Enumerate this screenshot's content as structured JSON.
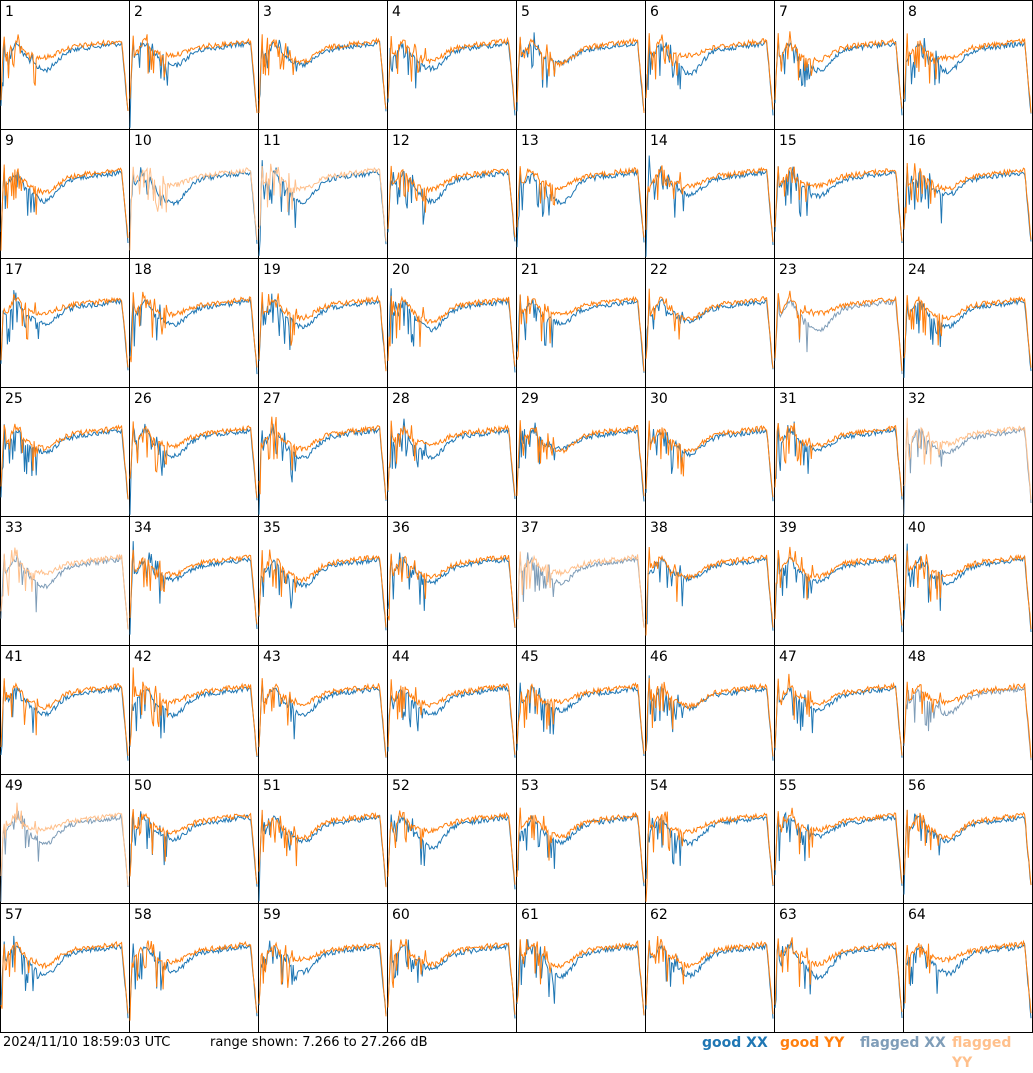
{
  "chart_data": {
    "type": "line",
    "layout": "8x8 grid of small-multiple spectra",
    "panel_labels": [
      "1",
      "2",
      "3",
      "4",
      "5",
      "6",
      "7",
      "8",
      "9",
      "10",
      "11",
      "12",
      "13",
      "14",
      "15",
      "16",
      "17",
      "18",
      "19",
      "20",
      "21",
      "22",
      "23",
      "24",
      "25",
      "26",
      "27",
      "28",
      "29",
      "30",
      "31",
      "32",
      "33",
      "34",
      "35",
      "36",
      "37",
      "38",
      "39",
      "40",
      "41",
      "42",
      "43",
      "44",
      "45",
      "46",
      "47",
      "48",
      "49",
      "50",
      "51",
      "52",
      "53",
      "54",
      "55",
      "56",
      "57",
      "58",
      "59",
      "60",
      "61",
      "62",
      "63",
      "64"
    ],
    "ylim_db": [
      7.266,
      27.266
    ],
    "grid": "panel borders only, no axes or tick labels",
    "legend_position": "bottom-right",
    "series": [
      {
        "name": "good XX",
        "color": "#1f77b4"
      },
      {
        "name": "good YY",
        "color": "#ff7f0e"
      },
      {
        "name": "flagged XX",
        "color": "#7f9db8"
      },
      {
        "name": "flagged YY",
        "color": "#ffc08c"
      }
    ],
    "panel_status": [
      [
        "good",
        "good"
      ],
      [
        "good",
        "good"
      ],
      [
        "good",
        "good"
      ],
      [
        "good",
        "good"
      ],
      [
        "good",
        "good"
      ],
      [
        "good",
        "good"
      ],
      [
        "good",
        "good"
      ],
      [
        "good",
        "good"
      ],
      [
        "good",
        "good"
      ],
      [
        "good",
        "flagged"
      ],
      [
        "good",
        "flagged"
      ],
      [
        "good",
        "good"
      ],
      [
        "good",
        "good"
      ],
      [
        "good",
        "good"
      ],
      [
        "good",
        "good"
      ],
      [
        "good",
        "good"
      ],
      [
        "good",
        "good"
      ],
      [
        "good",
        "good"
      ],
      [
        "good",
        "good"
      ],
      [
        "good",
        "good"
      ],
      [
        "good",
        "good"
      ],
      [
        "good",
        "good"
      ],
      [
        "flagged",
        "good"
      ],
      [
        "good",
        "good"
      ],
      [
        "good",
        "good"
      ],
      [
        "good",
        "good"
      ],
      [
        "good",
        "good"
      ],
      [
        "good",
        "good"
      ],
      [
        "good",
        "good"
      ],
      [
        "good",
        "good"
      ],
      [
        "good",
        "good"
      ],
      [
        "flagged",
        "flagged"
      ],
      [
        "flagged",
        "flagged"
      ],
      [
        "good",
        "good"
      ],
      [
        "good",
        "good"
      ],
      [
        "good",
        "good"
      ],
      [
        "flagged",
        "flagged"
      ],
      [
        "good",
        "good"
      ],
      [
        "good",
        "good"
      ],
      [
        "good",
        "good"
      ],
      [
        "good",
        "good"
      ],
      [
        "good",
        "good"
      ],
      [
        "good",
        "good"
      ],
      [
        "good",
        "good"
      ],
      [
        "good",
        "good"
      ],
      [
        "good",
        "good"
      ],
      [
        "good",
        "good"
      ],
      [
        "flagged",
        "good"
      ],
      [
        "flagged",
        "flagged"
      ],
      [
        "good",
        "good"
      ],
      [
        "good",
        "good"
      ],
      [
        "good",
        "good"
      ],
      [
        "good",
        "good"
      ],
      [
        "good",
        "good"
      ],
      [
        "good",
        "good"
      ],
      [
        "good",
        "good"
      ],
      [
        "good",
        "good"
      ],
      [
        "good",
        "good"
      ],
      [
        "good",
        "good"
      ],
      [
        "good",
        "good"
      ],
      [
        "good",
        "good"
      ],
      [
        "good",
        "good"
      ],
      [
        "good",
        "good"
      ],
      [
        "good",
        "good"
      ]
    ]
  },
  "footer": {
    "timestamp": "2024/11/10 18:59:03 UTC",
    "range": "range shown: 7.266 to 27.266 dB",
    "legend": {
      "good_xx": "good XX",
      "good_yy": "good YY",
      "flagged_xx": "flagged XX",
      "flagged_yy": "flagged YY"
    }
  }
}
